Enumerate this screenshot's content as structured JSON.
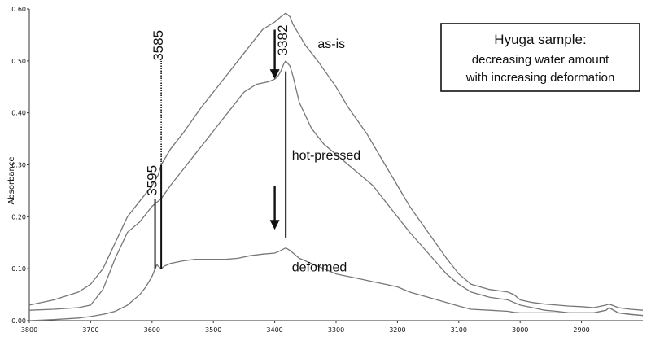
{
  "chart_data": {
    "type": "line",
    "title": "",
    "xlabel": "",
    "ylabel": "Absorbance",
    "xlim": [
      3800,
      2800
    ],
    "ylim": [
      0.0,
      0.6
    ],
    "x_ticks": [
      3800,
      3700,
      3600,
      3500,
      3400,
      3300,
      3200,
      3100,
      3000,
      2900
    ],
    "y_ticks": [
      "0.00",
      "0.10",
      "0.20",
      "0.30",
      "0.40",
      "0.50",
      "0.60"
    ],
    "series": [
      {
        "name": "as-is",
        "x": [
          3800,
          3760,
          3720,
          3700,
          3680,
          3660,
          3640,
          3620,
          3600,
          3590,
          3585,
          3570,
          3550,
          3520,
          3500,
          3480,
          3460,
          3440,
          3420,
          3400,
          3390,
          3382,
          3375,
          3370,
          3360,
          3350,
          3330,
          3300,
          3280,
          3250,
          3220,
          3200,
          3180,
          3150,
          3120,
          3100,
          3080,
          3050,
          3020,
          3010,
          3000,
          2980,
          2960,
          2940,
          2920,
          2900,
          2880,
          2860,
          2855,
          2840,
          2820,
          2800
        ],
        "y": [
          0.03,
          0.04,
          0.055,
          0.07,
          0.1,
          0.15,
          0.2,
          0.23,
          0.26,
          0.28,
          0.3,
          0.33,
          0.36,
          0.41,
          0.44,
          0.47,
          0.5,
          0.53,
          0.56,
          0.575,
          0.585,
          0.592,
          0.585,
          0.57,
          0.55,
          0.53,
          0.5,
          0.45,
          0.41,
          0.36,
          0.3,
          0.26,
          0.22,
          0.17,
          0.12,
          0.09,
          0.07,
          0.06,
          0.055,
          0.05,
          0.04,
          0.035,
          0.032,
          0.03,
          0.028,
          0.027,
          0.025,
          0.03,
          0.032,
          0.025,
          0.022,
          0.02
        ]
      },
      {
        "name": "hot-pressed",
        "x": [
          3800,
          3760,
          3720,
          3700,
          3680,
          3660,
          3640,
          3620,
          3600,
          3590,
          3585,
          3570,
          3550,
          3530,
          3510,
          3490,
          3470,
          3450,
          3430,
          3410,
          3400,
          3395,
          3390,
          3385,
          3382,
          3375,
          3370,
          3360,
          3340,
          3320,
          3300,
          3280,
          3260,
          3240,
          3220,
          3200,
          3180,
          3150,
          3120,
          3100,
          3080,
          3050,
          3020,
          3010,
          3000,
          2980,
          2960,
          2940,
          2920,
          2900,
          2880,
          2860,
          2855,
          2840,
          2820,
          2800
        ],
        "y": [
          0.02,
          0.022,
          0.025,
          0.03,
          0.06,
          0.12,
          0.17,
          0.19,
          0.22,
          0.23,
          0.235,
          0.26,
          0.29,
          0.32,
          0.35,
          0.38,
          0.41,
          0.44,
          0.455,
          0.46,
          0.465,
          0.47,
          0.48,
          0.495,
          0.5,
          0.49,
          0.47,
          0.42,
          0.37,
          0.34,
          0.32,
          0.3,
          0.28,
          0.26,
          0.23,
          0.2,
          0.17,
          0.13,
          0.09,
          0.07,
          0.055,
          0.045,
          0.04,
          0.035,
          0.03,
          0.025,
          0.02,
          0.018,
          0.015,
          0.015,
          0.015,
          0.02,
          0.025,
          0.015,
          0.012,
          0.01
        ]
      },
      {
        "name": "deformed",
        "x": [
          3800,
          3760,
          3720,
          3700,
          3680,
          3660,
          3640,
          3620,
          3610,
          3600,
          3595,
          3592,
          3590,
          3585,
          3580,
          3570,
          3550,
          3530,
          3500,
          3480,
          3460,
          3440,
          3420,
          3400,
          3390,
          3382,
          3375,
          3360,
          3340,
          3320,
          3300,
          3280,
          3260,
          3240,
          3220,
          3200,
          3180,
          3150,
          3120,
          3100,
          3080,
          3050,
          3020,
          3010,
          3000,
          2980,
          2960,
          2940,
          2920,
          2900,
          2880,
          2860,
          2855,
          2840,
          2820,
          2800
        ],
        "y": [
          0.0,
          0.002,
          0.005,
          0.008,
          0.012,
          0.018,
          0.03,
          0.05,
          0.065,
          0.085,
          0.1,
          0.108,
          0.105,
          0.1,
          0.105,
          0.11,
          0.115,
          0.118,
          0.118,
          0.118,
          0.12,
          0.125,
          0.128,
          0.13,
          0.135,
          0.14,
          0.135,
          0.12,
          0.11,
          0.1,
          0.09,
          0.085,
          0.08,
          0.075,
          0.07,
          0.065,
          0.055,
          0.045,
          0.035,
          0.028,
          0.022,
          0.02,
          0.018,
          0.016,
          0.015,
          0.015,
          0.015,
          0.015,
          0.015,
          0.015,
          0.015,
          0.02,
          0.025,
          0.015,
          0.012,
          0.01
        ]
      }
    ],
    "series_labels": [
      {
        "text": "as-is",
        "x": 3330,
        "y": 0.525
      },
      {
        "text": "hot-pressed",
        "x": 3372,
        "y": 0.31
      },
      {
        "text": "deformed",
        "x": 3372,
        "y": 0.095
      }
    ],
    "peak_annotations": [
      {
        "label": "3585",
        "x": 3585,
        "line_from": 0.235,
        "line_to": 0.5,
        "line_style": "dotted",
        "label_y": 0.5
      },
      {
        "label": "3595",
        "x": 3595,
        "line_from": 0.1,
        "line_to": 0.235,
        "line_style": "solid",
        "label_y": 0.24
      },
      {
        "label": "3382",
        "x": 3382,
        "line_from": 0.16,
        "line_to": 0.48,
        "line_style": "solid",
        "label_y": 0.51
      }
    ],
    "paired_line": {
      "x": 3585,
      "from": 0.1,
      "to": 0.3
    },
    "arrows": [
      {
        "x": 3400,
        "from": 0.56,
        "to": 0.465
      },
      {
        "x": 3400,
        "from": 0.26,
        "to": 0.175
      }
    ],
    "legend_box": {
      "title": "Hyuga sample:",
      "lines": [
        "decreasing water amount",
        "with increasing deformation"
      ],
      "placement": "top-right"
    },
    "grid": false
  },
  "colors": {
    "series_line": "#777777",
    "annotation": "#111111",
    "axis": "#333333",
    "background": "#ffffff"
  }
}
